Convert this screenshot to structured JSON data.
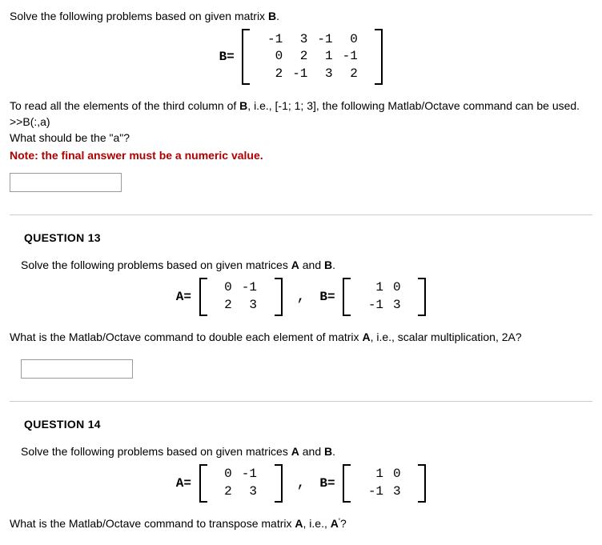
{
  "q12": {
    "intro_prefix": "Solve the following problems based on given matrix ",
    "intro_matrix": "B",
    "intro_suffix": ".",
    "B_label": "B=",
    "B": [
      [
        "-1",
        "3",
        "-1",
        "0"
      ],
      [
        "0",
        "2",
        "1",
        "-1"
      ],
      [
        "2",
        "-1",
        "3",
        "2"
      ]
    ],
    "line1_prefix": "To read all the elements of the third column of ",
    "line1_mid": ", i.e., [-1; 1; 3], the following Matlab/Octave command can be used.",
    "line2": ">>B(:,a)",
    "line3": "What should be the \"a\"?",
    "note": "Note: the final answer must be a numeric value."
  },
  "q13": {
    "heading": "QUESTION 13",
    "intro_prefix": "Solve the following problems based on given matrices ",
    "intro_a": "A",
    "and": " and ",
    "intro_b": "B",
    "intro_suffix": ".",
    "A_label": "A=",
    "B_label": "B=",
    "A": [
      [
        "0",
        "-1"
      ],
      [
        "2",
        "3"
      ]
    ],
    "B": [
      [
        "1",
        "0"
      ],
      [
        "-1",
        "3"
      ]
    ],
    "comma": ",",
    "ask_prefix": "What is the Matlab/Octave command to double each element of matrix ",
    "ask_suffix": ", i.e., scalar multiplication, 2A?"
  },
  "q14": {
    "heading": "QUESTION 14",
    "intro_prefix": "Solve the following problems based on given matrices ",
    "intro_a": "A",
    "and": " and ",
    "intro_b": "B",
    "intro_suffix": ".",
    "A_label": "A=",
    "B_label": "B=",
    "A": [
      [
        "0",
        "-1"
      ],
      [
        "2",
        "3"
      ]
    ],
    "B": [
      [
        "1",
        "0"
      ],
      [
        "-1",
        "3"
      ]
    ],
    "comma": ",",
    "ask_prefix": "What is the Matlab/Octave command to transpose matrix ",
    "ask_suffix": ", i.e., ",
    "ask_aprime_a": "A",
    "ask_aprime_sup": "'",
    "ask_tail": "?"
  }
}
